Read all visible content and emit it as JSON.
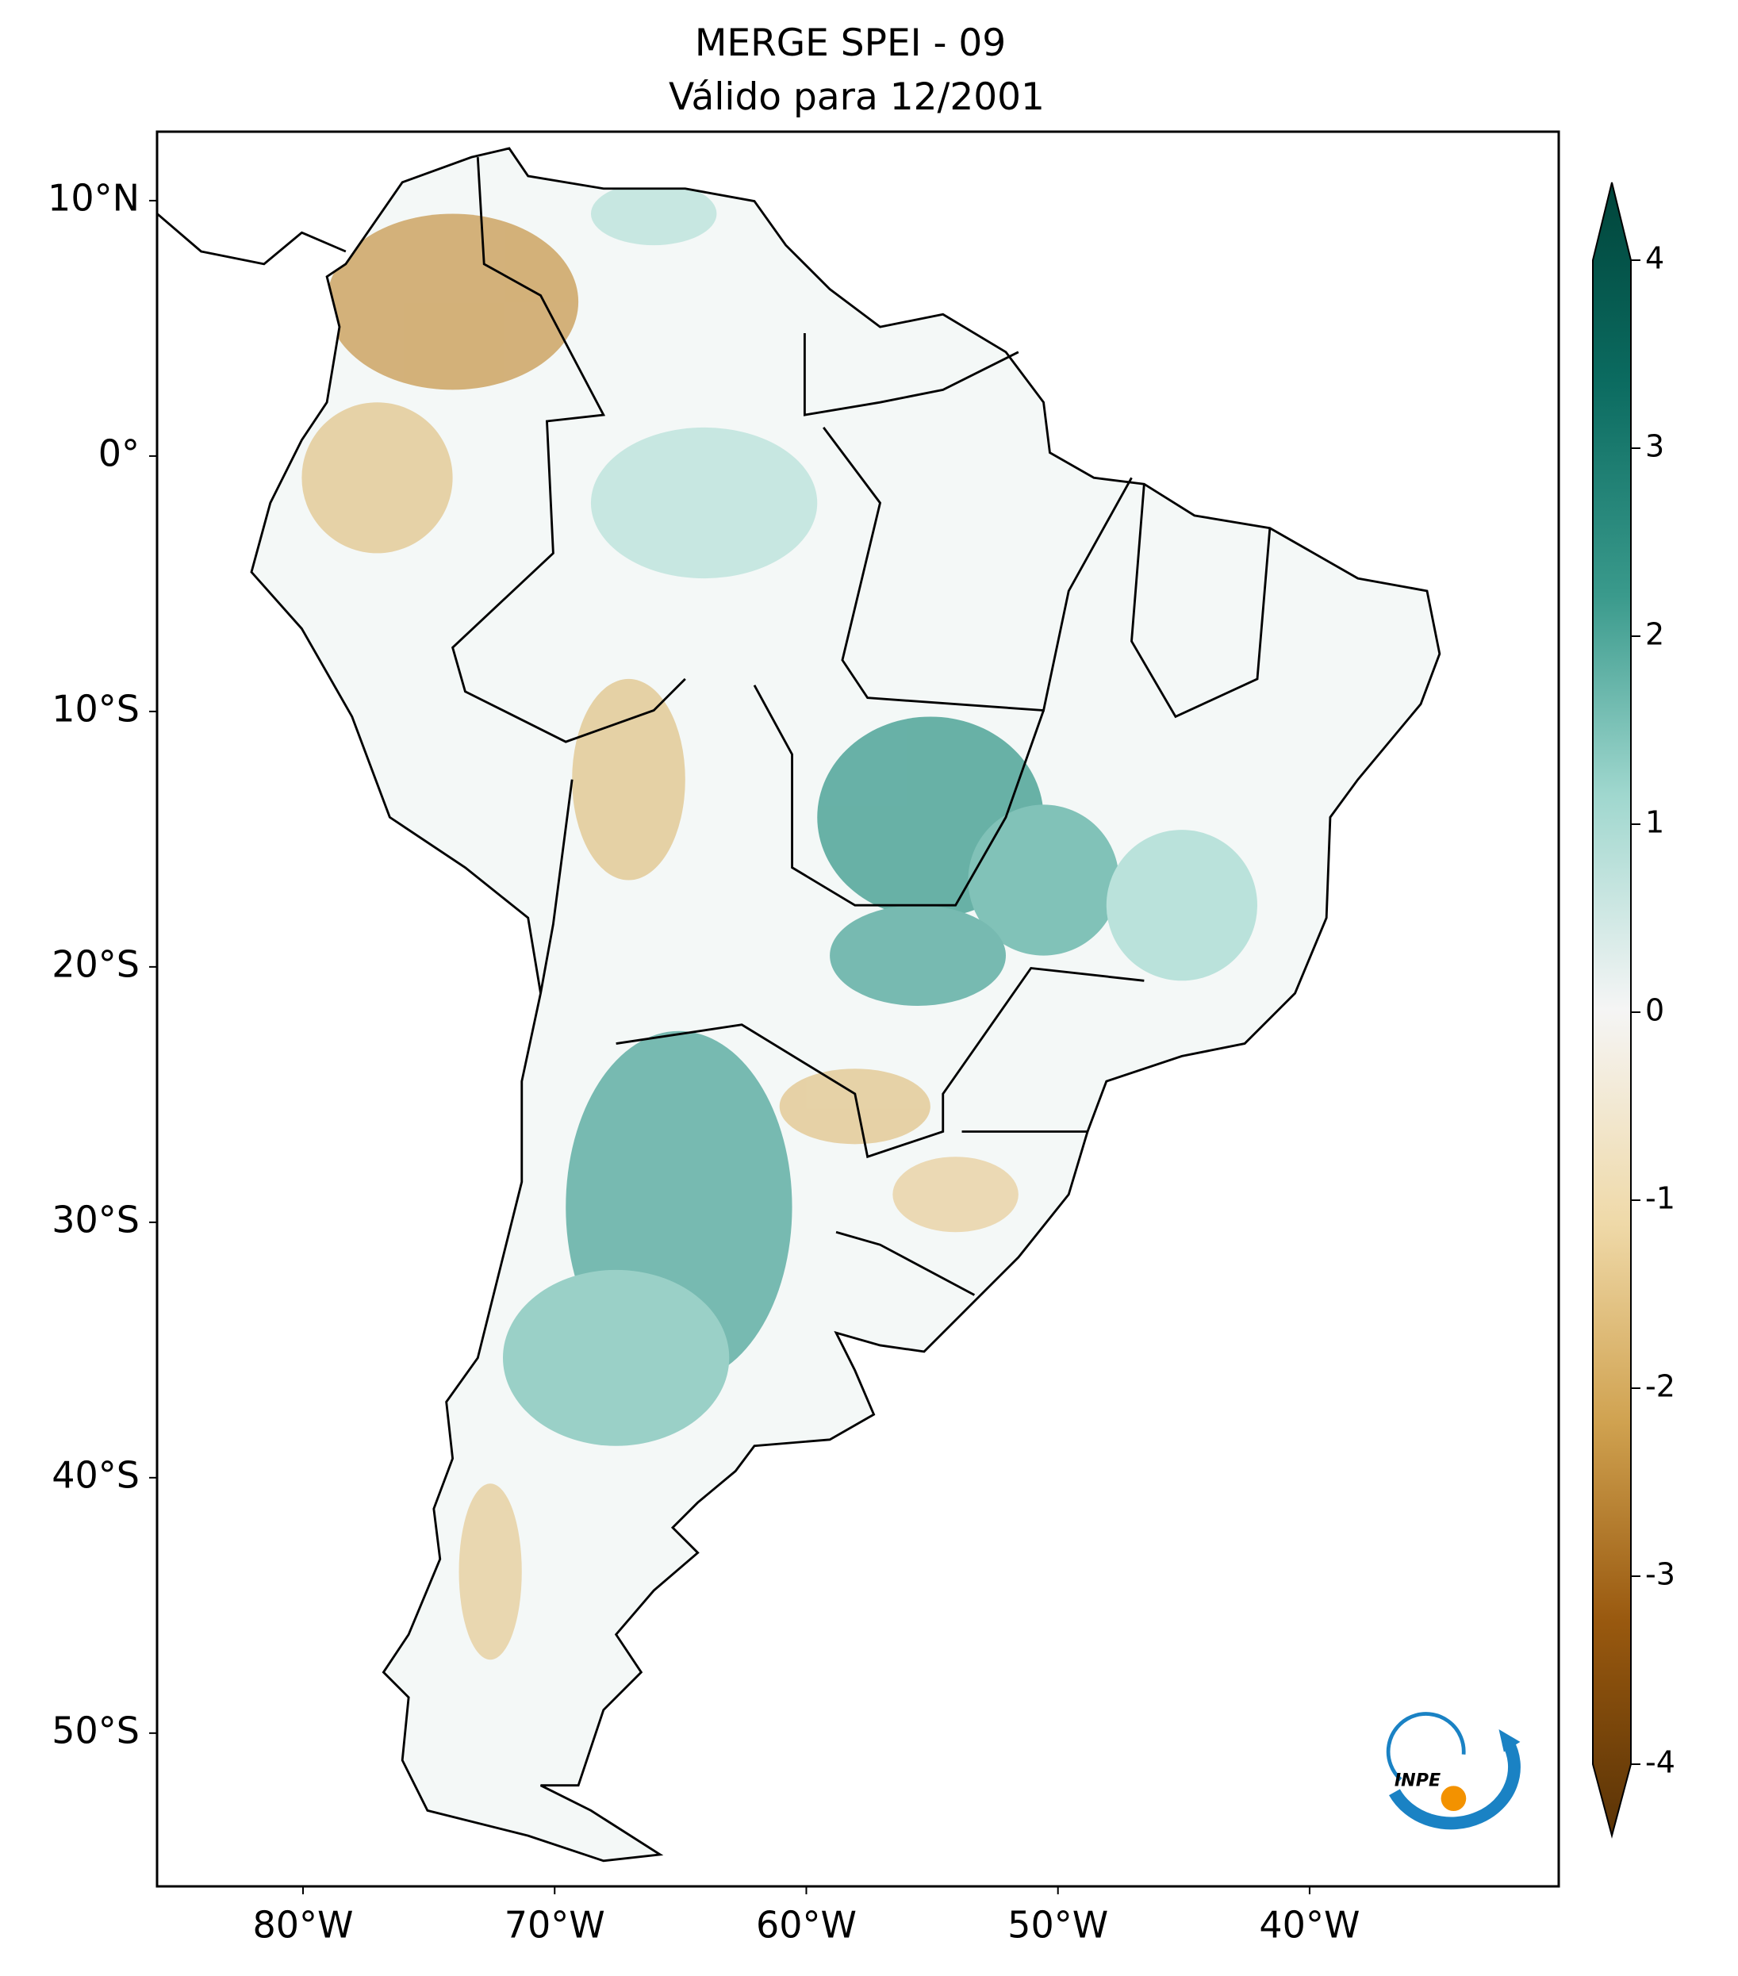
{
  "title": [
    "MERGE   SPEI - 09",
    "Válido para 12/2001"
  ],
  "map": {
    "xlim": [
      -85.8,
      -30.1
    ],
    "ylim": [
      -56,
      12.7
    ],
    "xticks": [
      {
        "value": -80,
        "label": "80°W"
      },
      {
        "value": -70,
        "label": "70°W"
      },
      {
        "value": -60,
        "label": "60°W"
      },
      {
        "value": -50,
        "label": "50°W"
      },
      {
        "value": -40,
        "label": "40°W"
      }
    ],
    "yticks": [
      {
        "value": 10,
        "label": "10°N"
      },
      {
        "value": 0,
        "label": "0°"
      },
      {
        "value": -10,
        "label": "10°S"
      },
      {
        "value": -20,
        "label": "20°S"
      },
      {
        "value": -30,
        "label": "30°S"
      },
      {
        "value": -40,
        "label": "40°S"
      },
      {
        "value": -50,
        "label": "50°S"
      }
    ]
  },
  "colorbar": {
    "lim": [
      -4,
      4
    ],
    "ticks": [
      4,
      3,
      2,
      1,
      0,
      -1,
      -2,
      -3,
      -4
    ]
  },
  "logo": "INPE"
}
